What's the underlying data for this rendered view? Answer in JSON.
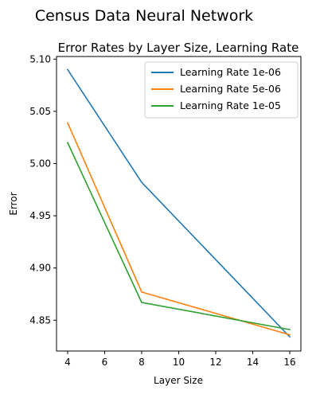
{
  "figure": {
    "suptitle": "Census Data Neural Network"
  },
  "chart_data": {
    "type": "line",
    "title": "Error Rates by Layer Size, Learning Rate",
    "xlabel": "Layer Size",
    "ylabel": "Error",
    "x": [
      4,
      8,
      16
    ],
    "xlim": [
      3.4,
      16.6
    ],
    "ylim": [
      4.8205,
      5.1025
    ],
    "xticks": [
      "4",
      "6",
      "8",
      "10",
      "12",
      "14",
      "16"
    ],
    "yticks": [
      "4.85",
      "4.90",
      "4.95",
      "5.00",
      "5.05",
      "5.10"
    ],
    "grid": false,
    "legend_position": "top-right",
    "series": [
      {
        "name": "Learning Rate 1e-06",
        "color": "#1f77b4",
        "values": [
          5.09,
          4.982,
          4.834
        ]
      },
      {
        "name": "Learning Rate 5e-06",
        "color": "#ff7f0e",
        "values": [
          5.039,
          4.877,
          4.836
        ]
      },
      {
        "name": "Learning Rate 1e-05",
        "color": "#2ca02c",
        "values": [
          5.02,
          4.867,
          4.841
        ]
      }
    ]
  }
}
